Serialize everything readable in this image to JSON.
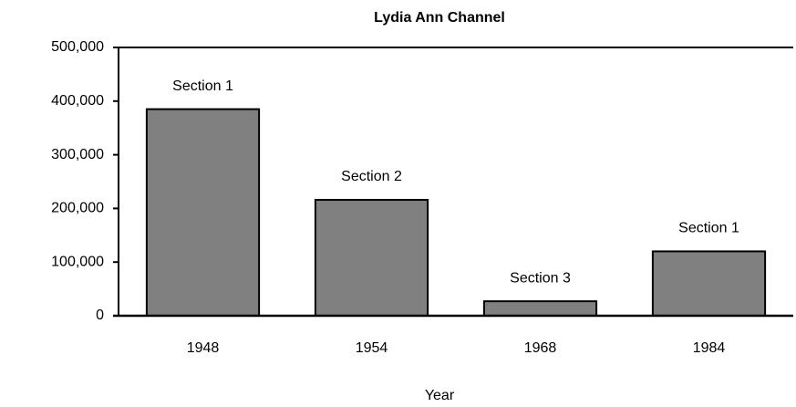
{
  "chart_data": {
    "type": "bar",
    "title": "Lydia Ann Channel",
    "x_label": "Year",
    "categories": [
      "1948",
      "1954",
      "1968",
      "1984"
    ],
    "values": [
      385000,
      216000,
      27000,
      120000
    ],
    "annotations": [
      "Section 1",
      "Section 2",
      "Section 3",
      "Section 1"
    ],
    "color": "#808080",
    "ylim": [
      0,
      500000
    ],
    "yticks": [
      0,
      {
        "value": 100000,
        "label": "100,000"
      },
      {
        "value": 200000,
        "label": "200,000"
      },
      {
        "value": 300000,
        "label": "300,000"
      },
      {
        "value": 400000,
        "label": "400,000"
      },
      {
        "value": 500000,
        "label": "500,000"
      }
    ],
    "grid": false
  }
}
